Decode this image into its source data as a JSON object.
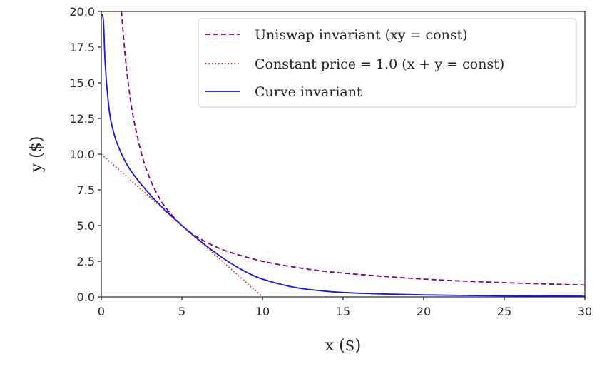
{
  "chart_data": {
    "type": "line",
    "title": "",
    "xlabel": "x ($)",
    "ylabel": "y ($)",
    "xlim": [
      0,
      30
    ],
    "ylim": [
      0,
      20
    ],
    "xticks": [
      "0",
      "5",
      "10",
      "15",
      "20",
      "25",
      "30"
    ],
    "yticks": [
      "0.0",
      "2.5",
      "5.0",
      "7.5",
      "10.0",
      "12.5",
      "15.0",
      "17.5",
      "20.0"
    ],
    "grid": false,
    "legend_placement": "top-right",
    "series": [
      {
        "name": "Uniswap invariant (xy = const)",
        "color": "#800080",
        "style": "dashed",
        "x": [
          1.25,
          1.5,
          1.75,
          2,
          2.5,
          3,
          3.5,
          4,
          5,
          6,
          7,
          8,
          10,
          12.5,
          15,
          20,
          25,
          30
        ],
        "y": [
          20,
          16.67,
          14.29,
          12.5,
          10,
          8.33,
          7.14,
          6.25,
          5,
          4.17,
          3.57,
          3.125,
          2.5,
          2,
          1.67,
          1.25,
          1,
          0.833
        ]
      },
      {
        "name": "Constant price = 1.0 (x + y = const)",
        "color": "#e02020",
        "style": "dotted",
        "x": [
          0,
          10
        ],
        "y": [
          10,
          0
        ]
      },
      {
        "name": "Curve invariant",
        "color": "#1a1acc",
        "style": "solid",
        "x": [
          0.05,
          0.1,
          0.15,
          0.25,
          0.5,
          0.75,
          1,
          1.5,
          2,
          3,
          4,
          5,
          6,
          7,
          8,
          9,
          10,
          12,
          14,
          16,
          20,
          25,
          30
        ],
        "y": [
          19.8,
          19.6,
          19.0,
          16.2,
          13.0,
          11.6,
          10.7,
          9.46,
          8.57,
          7.2,
          6.04,
          5.0,
          4.04,
          3.16,
          2.39,
          1.74,
          1.25,
          0.67,
          0.39,
          0.26,
          0.14,
          0.077,
          0.049
        ]
      }
    ]
  }
}
